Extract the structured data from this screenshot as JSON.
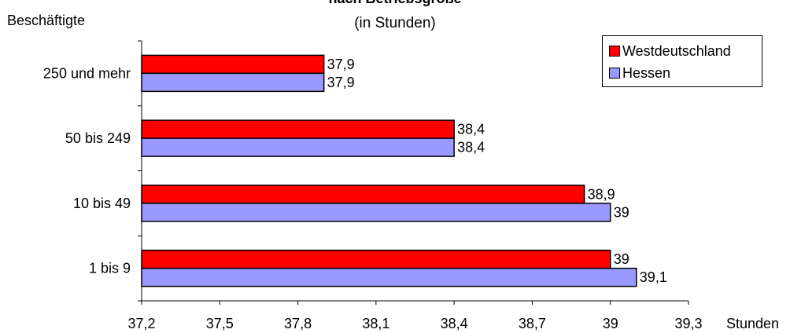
{
  "title": {
    "line1": "nach Betriebsgröße",
    "line2": "(in Stunden)"
  },
  "y_axis_label": "Beschäftigte",
  "x_axis_unit": "Stunden",
  "legend": [
    {
      "name": "Westdeutschland",
      "color": "#ff0000"
    },
    {
      "name": "Hessen",
      "color": "#9999ff"
    }
  ],
  "chart_data": {
    "type": "bar",
    "orientation": "horizontal",
    "categories": [
      "250 und mehr",
      "50 bis 249",
      "10 bis 49",
      "1 bis 9"
    ],
    "series": [
      {
        "name": "Westdeutschland",
        "values": [
          37.9,
          38.4,
          38.9,
          39.0
        ],
        "labels": [
          "37,9",
          "38,4",
          "38,9",
          "39"
        ]
      },
      {
        "name": "Hessen",
        "values": [
          37.9,
          38.4,
          39.0,
          39.1
        ],
        "labels": [
          "37,9",
          "38,4",
          "39",
          "39,1"
        ]
      }
    ],
    "xlim": [
      37.2,
      39.3
    ],
    "x_ticks": [
      "37,2",
      "37,5",
      "37,8",
      "38,1",
      "38,4",
      "38,7",
      "39",
      "39,3"
    ],
    "title": "nach Betriebsgröße (in Stunden)",
    "xlabel": "Stunden",
    "ylabel": "Beschäftigte",
    "grid": false,
    "legend_position": "top-right"
  }
}
